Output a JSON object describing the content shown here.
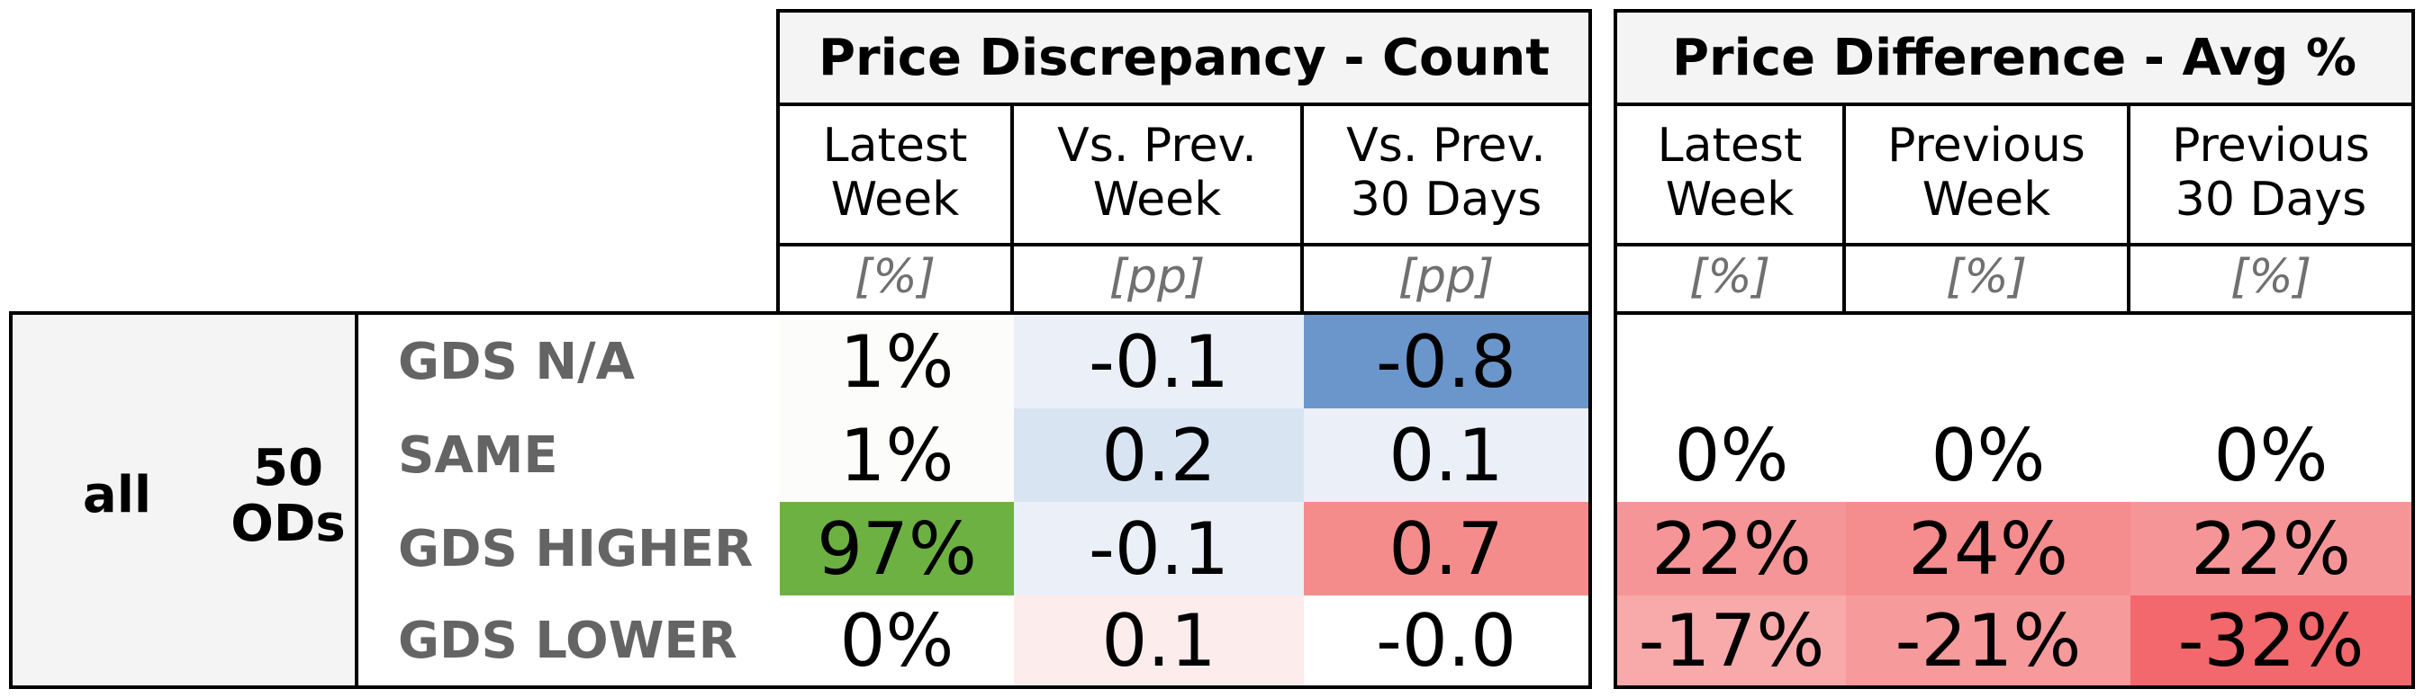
{
  "group": {
    "label": "all",
    "count_label": "50\nODs"
  },
  "panels": [
    {
      "title": "Price Discrepancy - Count",
      "columns": [
        {
          "label": "Latest\nWeek",
          "unit": "[%]"
        },
        {
          "label": "Vs. Prev.\nWeek",
          "unit": "[pp]"
        },
        {
          "label": "Vs. Prev.\n30 Days",
          "unit": "[pp]"
        }
      ]
    },
    {
      "title": "Price Difference - Avg %",
      "columns": [
        {
          "label": "Latest\nWeek",
          "unit": "[%]"
        },
        {
          "label": "Previous\nWeek",
          "unit": "[%]"
        },
        {
          "label": "Previous\n30 Days",
          "unit": "[%]"
        }
      ]
    }
  ],
  "rows": [
    {
      "label": "GDS N/A",
      "count": [
        {
          "v": "1%",
          "bg": "#fcfcfb"
        },
        {
          "v": "-0.1",
          "bg": "#ebf0f8"
        },
        {
          "v": "-0.8",
          "bg": "#6b96cb"
        }
      ],
      "avg": [
        {
          "v": "",
          "bg": "#ffffff"
        },
        {
          "v": "",
          "bg": "#ffffff"
        },
        {
          "v": "",
          "bg": "#ffffff"
        }
      ]
    },
    {
      "label": "SAME",
      "count": [
        {
          "v": "1%",
          "bg": "#fcfcfb"
        },
        {
          "v": "0.2",
          "bg": "#d8e4f1"
        },
        {
          "v": "0.1",
          "bg": "#ebf0f8"
        }
      ],
      "avg": [
        {
          "v": "0%",
          "bg": "#ffffff"
        },
        {
          "v": "0%",
          "bg": "#ffffff"
        },
        {
          "v": "0%",
          "bg": "#ffffff"
        }
      ]
    },
    {
      "label": "GDS HIGHER",
      "count": [
        {
          "v": "97%",
          "bg": "#6db143"
        },
        {
          "v": "-0.1",
          "bg": "#ebf0f8"
        },
        {
          "v": "0.7",
          "bg": "#f58c8c"
        }
      ],
      "avg": [
        {
          "v": "22%",
          "bg": "#f69597"
        },
        {
          "v": "24%",
          "bg": "#f58c8d"
        },
        {
          "v": "22%",
          "bg": "#f69597"
        }
      ]
    },
    {
      "label": "GDS LOWER",
      "count": [
        {
          "v": "0%",
          "bg": "#ffffff"
        },
        {
          "v": "0.1",
          "bg": "#fdecec"
        },
        {
          "v": "-0.0",
          "bg": "#ffffff"
        }
      ],
      "avg": [
        {
          "v": "-17%",
          "bg": "#f8a9aa"
        },
        {
          "v": "-21%",
          "bg": "#f69a9b"
        },
        {
          "v": "-32%",
          "bg": "#f2686c"
        }
      ]
    }
  ]
}
